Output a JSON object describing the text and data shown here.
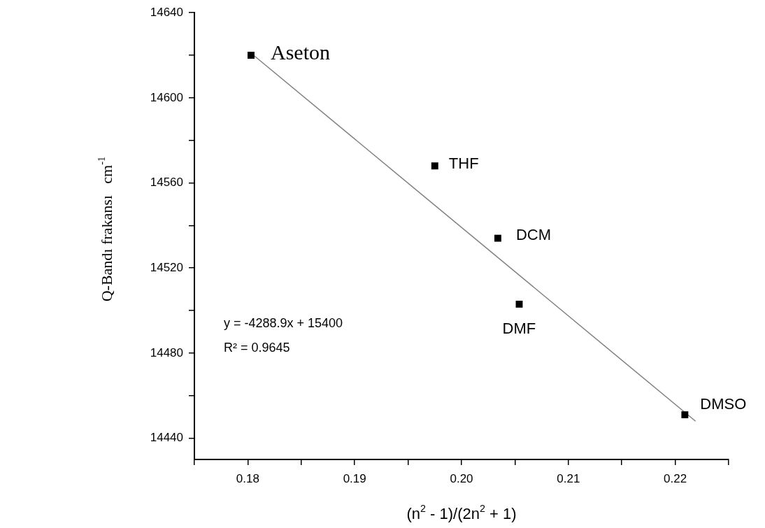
{
  "chart_data": {
    "type": "scatter",
    "xlabel": "(n$^{2}$ - 1)/(2n$^{2}$ + 1)",
    "ylabel": "Q-Bandı frakansı   cm$^{-1}$",
    "series": [
      {
        "marker": "square",
        "color": "#000000",
        "x": [
          0.1803,
          0.1975,
          0.2034,
          0.2054,
          0.2209
        ],
        "values": [
          14620,
          14568,
          14534,
          14503,
          14451
        ]
      },
      {
        "type": "line",
        "color": "#808080",
        "x": [
          0.1803,
          0.2219
        ],
        "values": [
          14621,
          14448
        ]
      }
    ],
    "xlim": [
      0.175,
      0.225
    ],
    "xticks": [
      {
        "value": 0.175,
        "label": null
      },
      {
        "value": 0.18,
        "label": "0.18"
      },
      {
        "value": 0.185,
        "label": null
      },
      {
        "value": 0.19,
        "label": "0.19"
      },
      {
        "value": 0.195,
        "label": null
      },
      {
        "value": 0.2,
        "label": "0.20"
      },
      {
        "value": 0.205,
        "label": null
      },
      {
        "value": 0.21,
        "label": "0.21"
      },
      {
        "value": 0.215,
        "label": null
      },
      {
        "value": 0.22,
        "label": "0.22"
      },
      {
        "value": 0.225,
        "label": null
      }
    ],
    "ylim": [
      14430,
      14640
    ],
    "yticks": [
      14440,
      {
        "value": 14460,
        "label": null
      },
      14480,
      {
        "value": 14500,
        "label": null
      },
      14520,
      {
        "value": 14540,
        "label": null
      },
      14560,
      {
        "value": 14580,
        "label": null
      },
      14600,
      {
        "value": 14620,
        "label": null
      },
      14640
    ],
    "annotations": [
      {
        "text": "Aseton",
        "x": 0.1803,
        "y": 14620
      },
      {
        "text": "THF",
        "x": 0.1975,
        "y": 14568
      },
      {
        "text": "DCM",
        "x": 0.2034,
        "y": 14534
      },
      {
        "text": "DMF",
        "x": 0.2054,
        "y": 14503
      },
      {
        "text": "DMSO",
        "x": 0.2209,
        "y": 14451
      },
      "y = -4288.9x + 15400",
      "R² = 0.9645"
    ]
  }
}
